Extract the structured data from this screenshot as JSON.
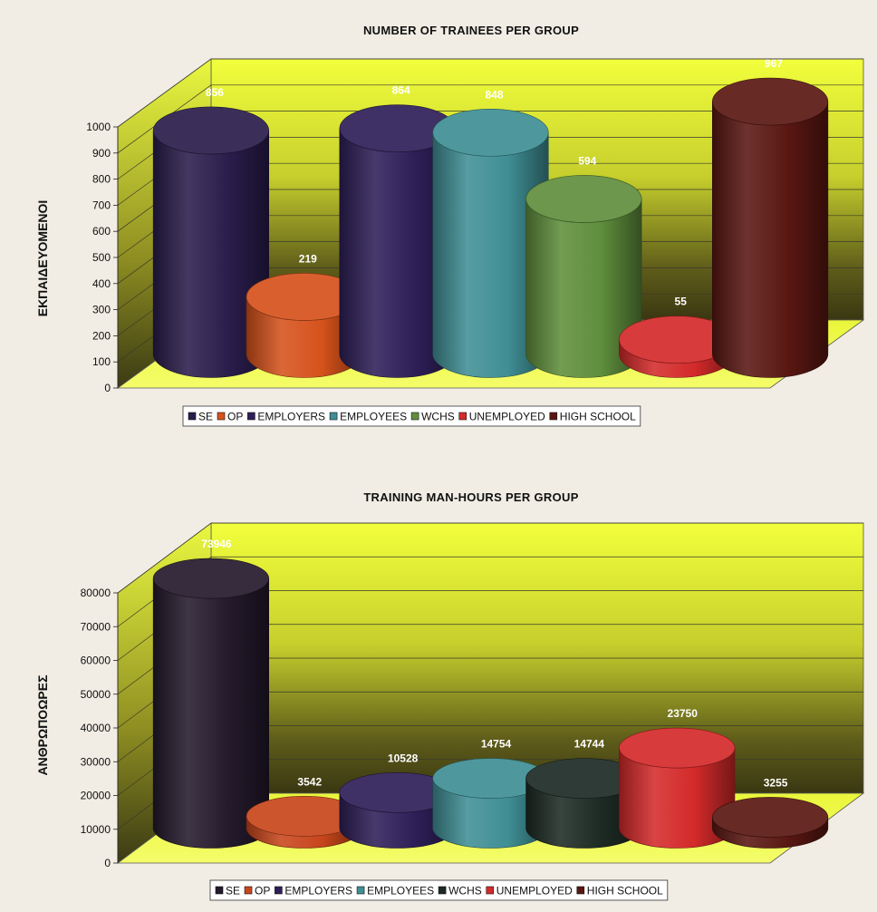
{
  "chart_data": [
    {
      "type": "bar",
      "title": "NUMBER OF TRAINEES PER GROUP",
      "ylabel": "ΕΚΠΑΙΔΕΥΟΜΕΝΟΙ",
      "xlabel": "",
      "ylim": [
        0,
        1000
      ],
      "yticks": [
        "0",
        "100",
        "200",
        "300",
        "400",
        "500",
        "600",
        "700",
        "800",
        "900",
        "1000"
      ],
      "categories": [
        "SE",
        "OP",
        "EMPLOYERS",
        "EMPLOYEES",
        "WCHS",
        "UNEMPLOYED",
        "HIGH SCHOOL"
      ],
      "values": [
        856,
        219,
        864,
        848,
        594,
        55,
        967
      ],
      "data_labels": [
        "856",
        "219",
        "864",
        "848",
        "594",
        "55",
        "967"
      ],
      "colors": [
        "#2a1d4c",
        "#d6521c",
        "#2e1f58",
        "#3f8f95",
        "#5f8e3c",
        "#d42a2a",
        "#5a1712"
      ],
      "legend": [
        "SE",
        "OP",
        "EMPLOYERS",
        "EMPLOYEES",
        "WCHS",
        "UNEMPLOYED",
        "HIGH SCHOOL"
      ],
      "legend_position": "bottom",
      "grid": true
    },
    {
      "type": "bar",
      "title": "TRAINING MAN-HOURS PER GROUP",
      "ylabel": "ΑΝΘΡΩΠΟΩΡΕΣ",
      "xlabel": "",
      "ylim": [
        0,
        80000
      ],
      "yticks": [
        "0",
        "10000",
        "20000",
        "30000",
        "40000",
        "50000",
        "60000",
        "70000",
        "80000"
      ],
      "categories": [
        "SE",
        "OP",
        "EMPLOYERS",
        "EMPLOYEES",
        "WCHS",
        "UNEMPLOYED",
        "HIGH SCHOOL"
      ],
      "values": [
        73946,
        3542,
        10528,
        14754,
        14744,
        23750,
        3255
      ],
      "data_labels": [
        "73946",
        "3542",
        "10528",
        "14754",
        "14744",
        "23750",
        "3255"
      ],
      "colors": [
        "#241a2c",
        "#c8461c",
        "#2e1f58",
        "#3f8f95",
        "#1d2a24",
        "#d42a2a",
        "#5a1712"
      ],
      "legend": [
        "SE",
        "OP",
        "EMPLOYERS",
        "EMPLOYEES",
        "WCHS",
        "UNEMPLOYED",
        "HIGH SCHOOL"
      ],
      "legend_position": "bottom",
      "grid": true
    }
  ]
}
